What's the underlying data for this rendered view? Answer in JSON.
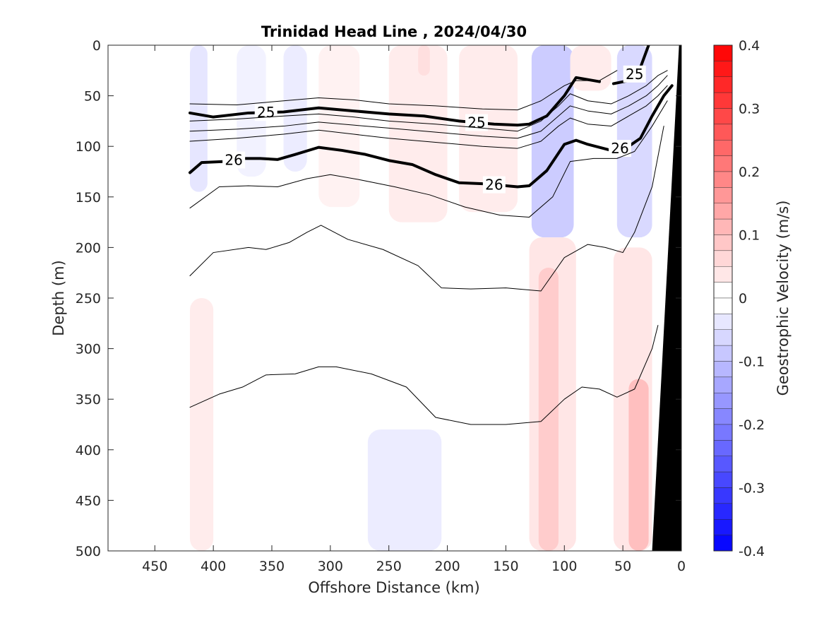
{
  "chart_data": {
    "type": "heatmap",
    "title": "Trinidad Head Line , 2024/04/30",
    "xlabel": "Offshore Distance (km)",
    "ylabel": "Depth (m)",
    "colorbar_label": "Geostrophic Velocity (m/s)",
    "xlim": [
      0,
      490
    ],
    "x_reversed": true,
    "ylim": [
      0,
      500
    ],
    "y_reversed": true,
    "x_ticks": [
      450,
      400,
      350,
      300,
      250,
      200,
      150,
      100,
      50,
      0
    ],
    "y_ticks": [
      0,
      50,
      100,
      150,
      200,
      250,
      300,
      350,
      400,
      450,
      500
    ],
    "colorbar_ticks": [
      "0.4",
      "0.3",
      "0.2",
      "0.1",
      "0",
      "-0.1",
      "-0.2",
      "-0.3",
      "-0.4"
    ],
    "clim": [
      -0.4,
      0.4
    ],
    "colors": {
      "positive": "#ff0000",
      "negative": "#0000ff",
      "zero": "#ffffff",
      "bathymetry": "#000000"
    },
    "velocity_patches": [
      {
        "x": [
          420,
          405
        ],
        "y": [
          0,
          145
        ],
        "v": -0.04
      },
      {
        "x": [
          380,
          355
        ],
        "y": [
          0,
          130
        ],
        "v": -0.02
      },
      {
        "x": [
          340,
          320
        ],
        "y": [
          0,
          125
        ],
        "v": -0.03
      },
      {
        "x": [
          310,
          275
        ],
        "y": [
          0,
          160
        ],
        "v": 0.02
      },
      {
        "x": [
          250,
          200
        ],
        "y": [
          0,
          175
        ],
        "v": 0.03
      },
      {
        "x": [
          225,
          215
        ],
        "y": [
          0,
          30
        ],
        "v": 0.05
      },
      {
        "x": [
          190,
          140
        ],
        "y": [
          0,
          165
        ],
        "v": 0.03
      },
      {
        "x": [
          120,
          105
        ],
        "y": [
          0,
          90
        ],
        "v": -0.2
      },
      {
        "x": [
          128,
          92
        ],
        "y": [
          0,
          190
        ],
        "v": -0.08
      },
      {
        "x": [
          95,
          60
        ],
        "y": [
          0,
          45
        ],
        "v": 0.03
      },
      {
        "x": [
          42,
          30
        ],
        "y": [
          0,
          110
        ],
        "v": -0.18
      },
      {
        "x": [
          55,
          25
        ],
        "y": [
          0,
          190
        ],
        "v": -0.06
      },
      {
        "x": [
          420,
          400
        ],
        "y": [
          250,
          500
        ],
        "v": 0.03
      },
      {
        "x": [
          268,
          205
        ],
        "y": [
          380,
          500
        ],
        "v": -0.03
      },
      {
        "x": [
          130,
          90
        ],
        "y": [
          190,
          500
        ],
        "v": 0.04
      },
      {
        "x": [
          122,
          105
        ],
        "y": [
          220,
          500
        ],
        "v": 0.08
      },
      {
        "x": [
          58,
          25
        ],
        "y": [
          200,
          500
        ],
        "v": 0.04
      },
      {
        "x": [
          45,
          28
        ],
        "y": [
          330,
          500
        ],
        "v": 0.1
      }
    ],
    "isopycnals": [
      {
        "label": "",
        "bold": false,
        "x": [
          420,
          380,
          340,
          310,
          280,
          250,
          210,
          170,
          140,
          120,
          100,
          90,
          70,
          55
        ],
        "y": [
          58,
          59,
          55,
          52,
          54,
          58,
          60,
          63,
          64,
          55,
          40,
          35,
          35,
          25
        ]
      },
      {
        "label": "25",
        "bold": true,
        "x": [
          420,
          400,
          370,
          340,
          310,
          280,
          250,
          220,
          190,
          160,
          140,
          130,
          115,
          100,
          90,
          70
        ],
        "y": [
          67,
          71,
          67,
          66,
          62,
          65,
          68,
          70,
          75,
          78,
          79,
          78,
          70,
          50,
          32,
          36
        ]
      },
      {
        "label": "",
        "bold": false,
        "x": [
          420,
          380,
          340,
          310,
          280,
          250,
          210,
          170,
          140,
          120,
          105,
          95,
          80,
          60,
          45,
          30,
          20,
          12
        ],
        "y": [
          75,
          73,
          70,
          68,
          71,
          75,
          78,
          82,
          85,
          75,
          60,
          48,
          55,
          58,
          50,
          40,
          30,
          25
        ]
      },
      {
        "label": "25",
        "bold": true,
        "x": [
          58,
          45,
          35,
          28
        ],
        "y": [
          38,
          35,
          22,
          0
        ]
      },
      {
        "label": "",
        "bold": false,
        "x": [
          420,
          380,
          340,
          310,
          280,
          250,
          210,
          170,
          140,
          120,
          105,
          95,
          80,
          60,
          45,
          30,
          20,
          12
        ],
        "y": [
          85,
          83,
          80,
          76,
          79,
          82,
          86,
          90,
          92,
          85,
          70,
          60,
          65,
          68,
          60,
          50,
          40,
          30
        ]
      },
      {
        "label": "",
        "bold": false,
        "x": [
          420,
          380,
          340,
          310,
          280,
          250,
          210,
          170,
          140,
          120,
          105,
          95,
          80,
          60,
          45,
          30,
          20,
          12
        ],
        "y": [
          95,
          92,
          88,
          84,
          88,
          92,
          96,
          100,
          102,
          95,
          80,
          72,
          78,
          80,
          70,
          60,
          50,
          40
        ]
      },
      {
        "label": "26",
        "bold": true,
        "x": [
          420,
          410,
          390,
          375,
          360,
          345,
          330,
          310,
          290,
          270,
          250,
          230,
          210,
          190,
          170,
          150,
          140,
          130,
          115,
          100,
          90,
          80,
          60,
          45,
          35,
          25,
          15,
          8
        ],
        "y": [
          126,
          116,
          115,
          112,
          112,
          113,
          108,
          101,
          104,
          108,
          114,
          118,
          128,
          136,
          137,
          139,
          140,
          139,
          124,
          98,
          94,
          98,
          104,
          100,
          92,
          70,
          50,
          40
        ]
      },
      {
        "label": "",
        "bold": false,
        "x": [
          420,
          395,
          370,
          345,
          320,
          300,
          275,
          245,
          215,
          185,
          155,
          130,
          110,
          95,
          75,
          55,
          40,
          25,
          12
        ],
        "y": [
          161,
          140,
          139,
          140,
          132,
          128,
          133,
          140,
          148,
          160,
          168,
          170,
          150,
          115,
          112,
          112,
          105,
          80,
          55
        ]
      },
      {
        "label": "",
        "bold": false,
        "x": [
          420,
          400,
          370,
          355,
          335,
          320,
          308,
          285,
          255,
          225,
          205,
          180,
          150,
          120,
          100,
          80,
          65,
          50,
          40,
          25,
          15
        ],
        "y": [
          228,
          205,
          200,
          202,
          195,
          185,
          178,
          192,
          202,
          218,
          240,
          241,
          240,
          243,
          210,
          197,
          200,
          205,
          185,
          140,
          80
        ]
      },
      {
        "label": "",
        "bold": false,
        "x": [
          420,
          395,
          375,
          355,
          330,
          310,
          295,
          265,
          235,
          210,
          180,
          150,
          120,
          100,
          85,
          70,
          55,
          40,
          25,
          20
        ],
        "y": [
          358,
          345,
          338,
          326,
          325,
          318,
          318,
          325,
          338,
          368,
          375,
          375,
          372,
          350,
          338,
          340,
          348,
          340,
          300,
          277
        ]
      }
    ],
    "bathymetry": {
      "x": [
        0,
        2,
        25,
        25
      ],
      "y": [
        0,
        0,
        500,
        500
      ]
    }
  }
}
